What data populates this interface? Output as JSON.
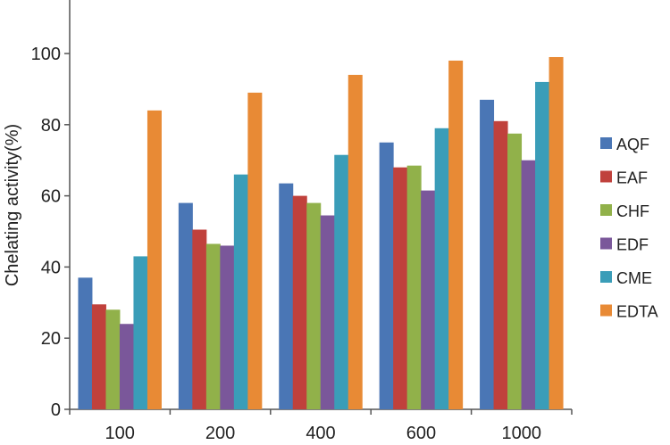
{
  "chart_data": {
    "type": "bar",
    "title": "",
    "xlabel": "",
    "ylabel": "Chelating activity(%)",
    "ylim": [
      0,
      115
    ],
    "yticks": [
      0,
      20,
      40,
      60,
      80,
      100
    ],
    "grid": false,
    "legend_position": "right",
    "categories": [
      "100",
      "200",
      "400",
      "600",
      "1000"
    ],
    "series": [
      {
        "name": "AQF",
        "color": "#4a76b5",
        "values": [
          37,
          58,
          63.5,
          75,
          87
        ]
      },
      {
        "name": "EAF",
        "color": "#c0413c",
        "values": [
          29.5,
          50.5,
          60,
          68,
          81
        ]
      },
      {
        "name": "CHF",
        "color": "#91b14a",
        "values": [
          28,
          46.5,
          58,
          68.5,
          77.5
        ]
      },
      {
        "name": "EDF",
        "color": "#7a579a",
        "values": [
          24,
          46,
          54.5,
          61.5,
          70
        ]
      },
      {
        "name": "CME",
        "color": "#3a9db8",
        "values": [
          43,
          66,
          71.5,
          79,
          92
        ]
      },
      {
        "name": "EDTA",
        "color": "#e88a35",
        "values": [
          84,
          89,
          94,
          98,
          99
        ]
      }
    ]
  }
}
